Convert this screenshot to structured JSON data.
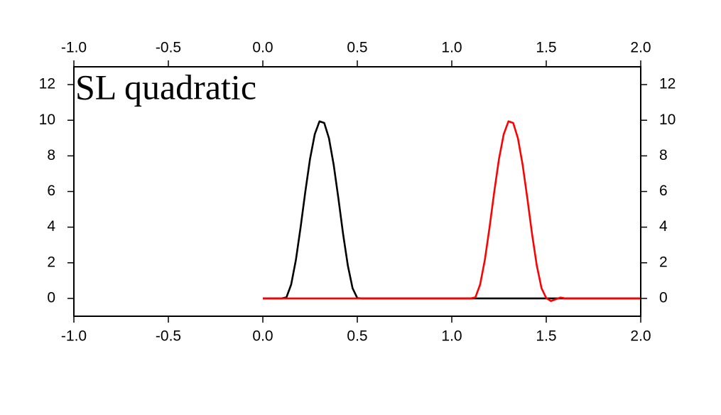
{
  "chart_data": {
    "type": "line",
    "title": "SL quadratic",
    "x": [
      0,
      0.025,
      0.05,
      0.075,
      0.1,
      0.125,
      0.15,
      0.175,
      0.2,
      0.225,
      0.25,
      0.275,
      0.3,
      0.325,
      0.35,
      0.375,
      0.4,
      0.425,
      0.45,
      0.475,
      0.5,
      0.525,
      0.55,
      0.575,
      0.6,
      0.625,
      0.65,
      0.675,
      0.7,
      0.725,
      0.75,
      0.775,
      0.8,
      0.825,
      0.85,
      0.875,
      0.9,
      0.925,
      0.95,
      0.975,
      1,
      1.025,
      1.05,
      1.075,
      1.1,
      1.125,
      1.15,
      1.175,
      1.2,
      1.225,
      1.25,
      1.275,
      1.3,
      1.325,
      1.35,
      1.375,
      1.4,
      1.425,
      1.45,
      1.475,
      1.5,
      1.525,
      1.55,
      1.575,
      1.6,
      1.625,
      1.65,
      1.675,
      1.7,
      1.725,
      1.75,
      1.775,
      1.8,
      1.825,
      1.85,
      1.875,
      1.9,
      1.925,
      1.95,
      1.975,
      2
    ],
    "series": [
      {
        "color": "#000000",
        "values": [
          0,
          0,
          0,
          0,
          0,
          0.06,
          0.78,
          2.16,
          4,
          6,
          7.84,
          9.22,
          9.94,
          9.85,
          8.99,
          7.5,
          5.61,
          3.6,
          1.84,
          0.57,
          0.02,
          0,
          0,
          0,
          0,
          0,
          0,
          0,
          0,
          0,
          0,
          0,
          0,
          0,
          0,
          0,
          0,
          0,
          0,
          0,
          0,
          0,
          0,
          0,
          0,
          0,
          0,
          0,
          0,
          0,
          0,
          0,
          0,
          0,
          0,
          0,
          0,
          0,
          0,
          0,
          0,
          0,
          0,
          0,
          0,
          0,
          0,
          0,
          0,
          0,
          0,
          0,
          0,
          0,
          0,
          0,
          0,
          0,
          0,
          0,
          0
        ]
      },
      {
        "color": "#ff0000",
        "values": [
          0,
          0,
          0,
          0,
          0,
          0,
          0,
          0,
          0,
          0,
          0,
          0,
          0,
          0,
          0,
          0,
          0,
          0,
          0,
          0,
          0,
          0,
          0,
          0,
          0,
          0,
          0,
          0,
          0,
          0,
          0,
          0,
          0,
          0,
          0,
          0,
          0,
          0,
          0,
          0,
          0,
          0,
          0,
          0,
          0,
          0.06,
          0.78,
          2.16,
          4,
          6,
          7.84,
          9.22,
          9.94,
          9.85,
          8.99,
          7.5,
          5.61,
          3.6,
          1.84,
          0.57,
          0.02,
          -0.15,
          -0.05,
          0.05,
          0,
          0,
          0,
          0,
          0,
          0,
          0,
          0,
          0,
          0,
          0,
          0,
          0,
          0,
          0,
          0,
          0
        ]
      }
    ],
    "xlim": [
      -1,
      2
    ],
    "xticks": [
      {
        "value": -1,
        "label": "-1.0"
      },
      {
        "value": -0.5,
        "label": "-0.5"
      },
      {
        "value": 0,
        "label": "0.0"
      },
      {
        "value": 0.5,
        "label": "0.5"
      },
      {
        "value": 1,
        "label": "1.0"
      },
      {
        "value": 1.5,
        "label": "1.5"
      },
      {
        "value": 2,
        "label": "2.0"
      }
    ],
    "ylim": [
      -1,
      13
    ],
    "yticks": [
      0,
      2,
      4,
      6,
      8,
      10,
      12
    ]
  }
}
